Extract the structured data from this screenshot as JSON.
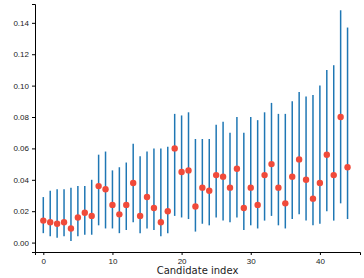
{
  "chart_data": {
    "type": "scatter",
    "x_label": "Candidate index",
    "x": [
      0,
      1,
      2,
      3,
      4,
      5,
      6,
      7,
      8,
      9,
      10,
      11,
      12,
      13,
      14,
      15,
      16,
      17,
      18,
      19,
      20,
      21,
      22,
      23,
      24,
      25,
      26,
      27,
      28,
      29,
      30,
      31,
      32,
      33,
      34,
      35,
      36,
      37,
      38,
      39,
      40,
      41,
      42,
      43,
      44
    ],
    "series": [
      {
        "color": "#f04a3a",
        "marker": "circle",
        "values": [
          0.014,
          0.013,
          0.012,
          0.013,
          0.009,
          0.016,
          0.019,
          0.017,
          0.036,
          0.034,
          0.024,
          0.018,
          0.024,
          0.038,
          0.017,
          0.029,
          0.022,
          0.013,
          0.02,
          0.06,
          0.045,
          0.046,
          0.023,
          0.035,
          0.033,
          0.043,
          0.042,
          0.035,
          0.047,
          0.022,
          0.035,
          0.024,
          0.043,
          0.05,
          0.035,
          0.025,
          0.042,
          0.053,
          0.04,
          0.028,
          0.038,
          0.056,
          0.043,
          0.08,
          0.048
        ],
        "lower": [
          0.006,
          0.004,
          0.003,
          0.004,
          0.001,
          0.004,
          0.005,
          0.005,
          0.011,
          0.009,
          0.009,
          0.006,
          0.008,
          0.013,
          0.006,
          0.009,
          0.008,
          0.004,
          0.006,
          0.017,
          0.016,
          0.015,
          0.007,
          0.012,
          0.011,
          0.016,
          0.014,
          0.013,
          0.016,
          0.008,
          0.011,
          0.009,
          0.014,
          0.017,
          0.011,
          0.009,
          0.015,
          0.018,
          0.014,
          0.011,
          0.012,
          0.02,
          0.014,
          0.025,
          0.015
        ],
        "upper": [
          0.029,
          0.033,
          0.034,
          0.034,
          0.035,
          0.036,
          0.036,
          0.04,
          0.056,
          0.058,
          0.046,
          0.048,
          0.051,
          0.063,
          0.055,
          0.058,
          0.06,
          0.06,
          0.061,
          0.082,
          0.081,
          0.083,
          0.066,
          0.066,
          0.066,
          0.075,
          0.077,
          0.07,
          0.08,
          0.07,
          0.08,
          0.078,
          0.083,
          0.089,
          0.082,
          0.082,
          0.09,
          0.096,
          0.093,
          0.094,
          0.1,
          0.11,
          0.113,
          0.148,
          0.137
        ]
      }
    ],
    "xlim": [
      -1.2,
      45.8
    ],
    "ylim": [
      -0.006,
      0.152
    ],
    "xticks": [
      0,
      10,
      20,
      30,
      40
    ],
    "yticks": [
      {
        "value": 0,
        "label": "0.00"
      },
      {
        "value": 0.02,
        "label": "0.02"
      },
      {
        "value": 0.04,
        "label": "0.04"
      },
      {
        "value": 0.06,
        "label": "0.06"
      },
      {
        "value": 0.08,
        "label": "0.08"
      },
      {
        "value": 0.1,
        "label": "0.10"
      },
      {
        "value": 0.12,
        "label": "0.12"
      },
      {
        "value": 0.14,
        "label": "0.14"
      }
    ],
    "grid": false
  }
}
